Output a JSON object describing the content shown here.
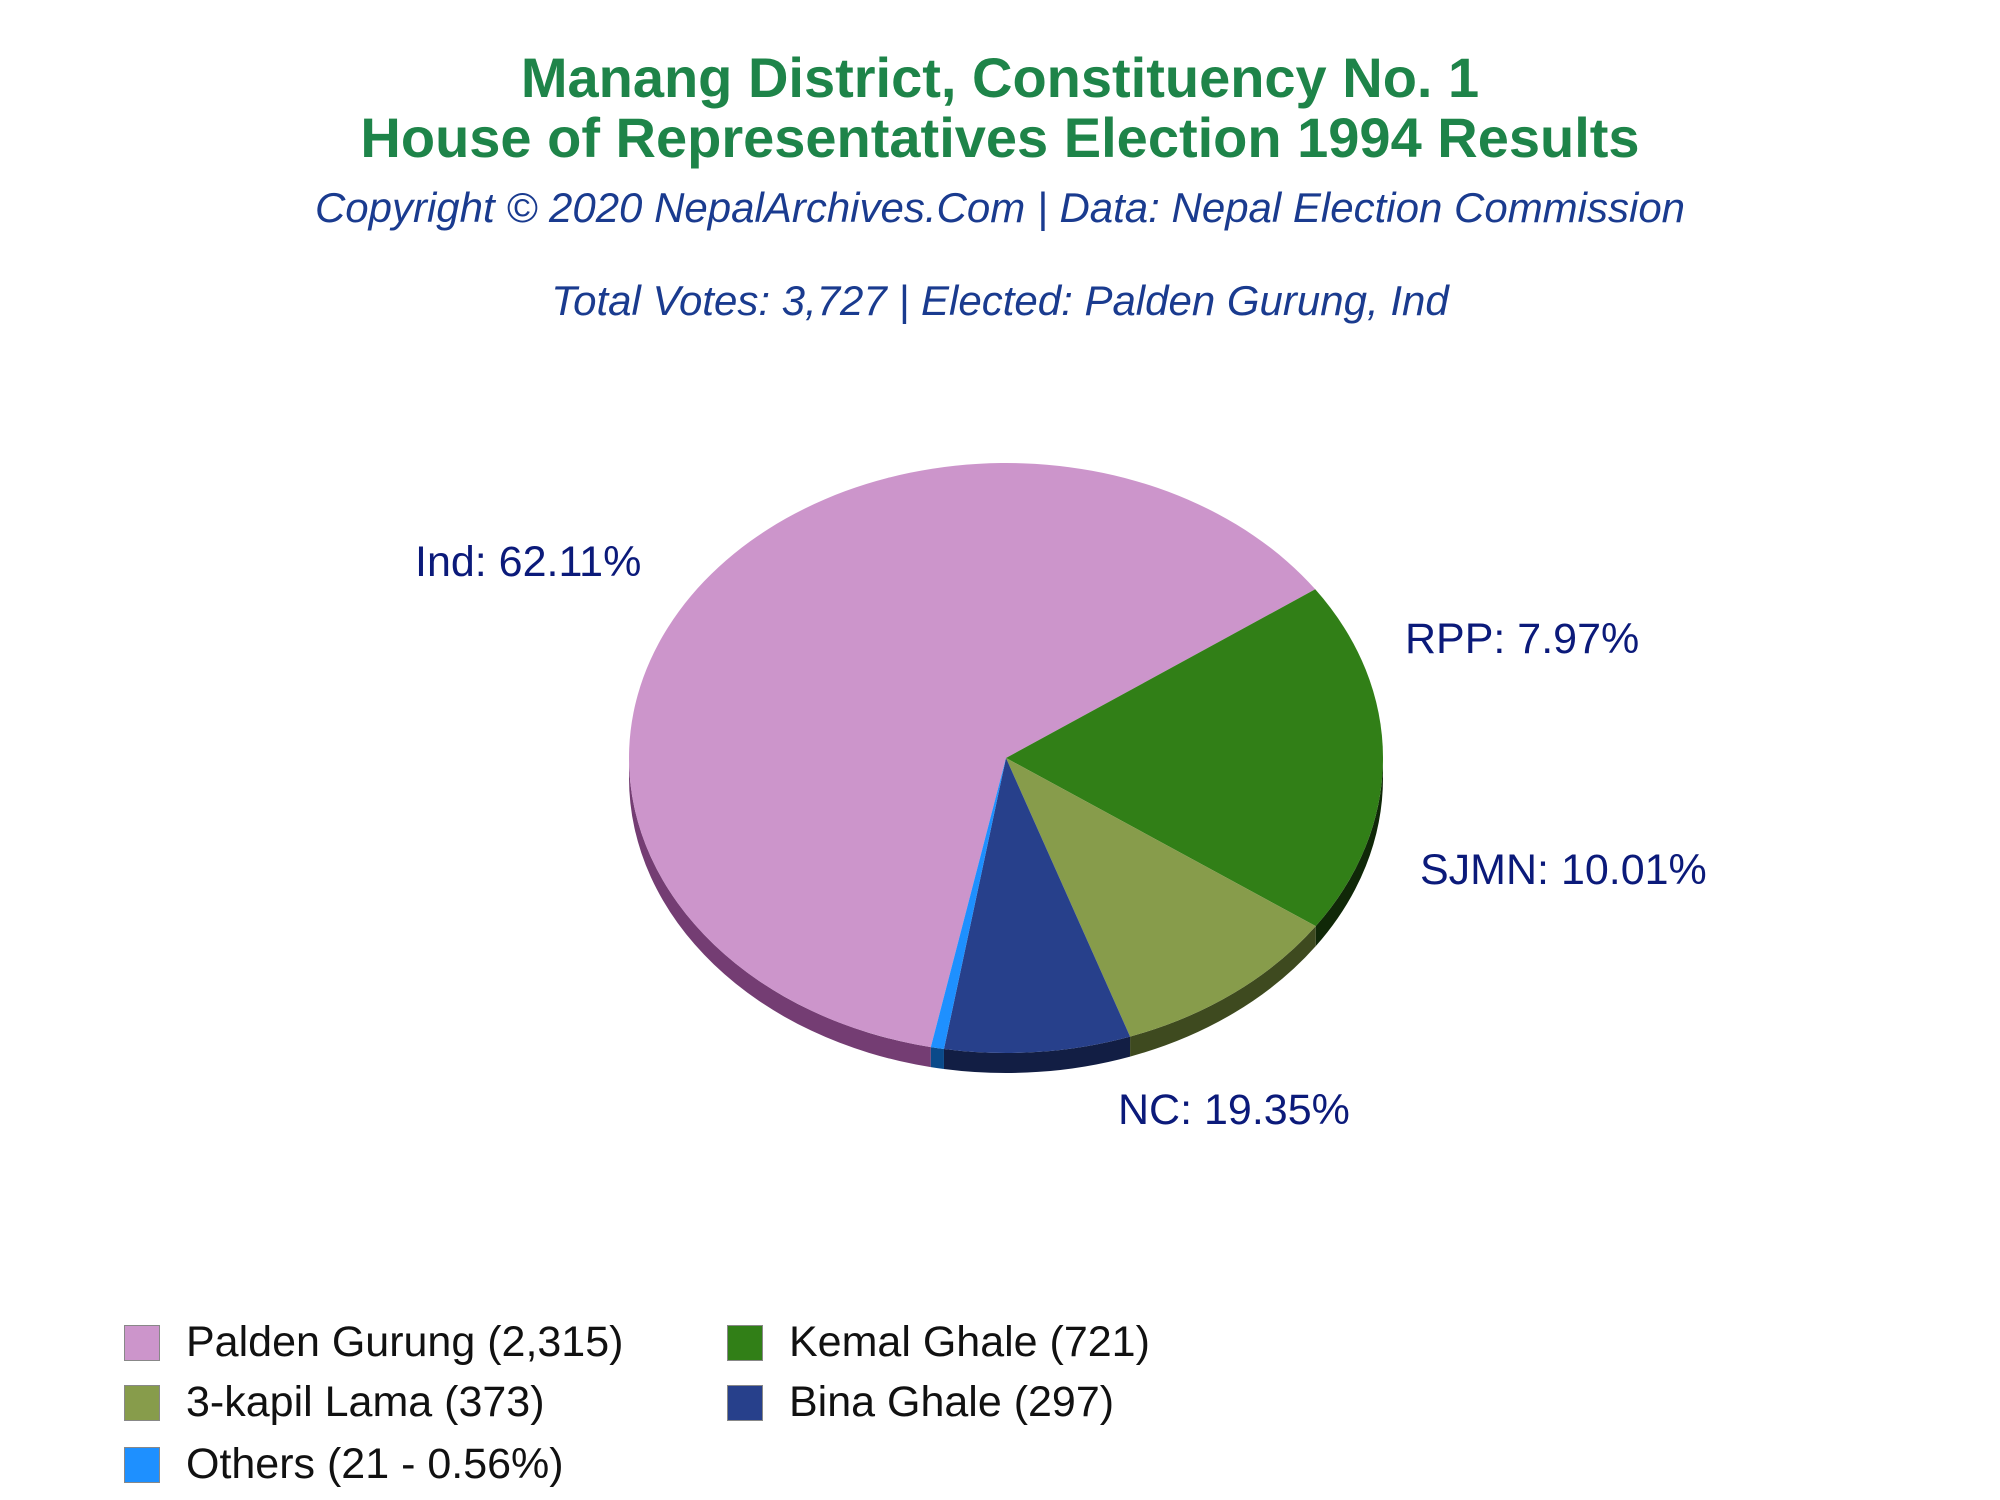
{
  "header": {
    "title_line1": "Manang District, Constituency No. 1",
    "title_line2": "House of Representatives Election 1994 Results",
    "copyright": "Copyright © 2020 NepalArchives.Com | Data: Nepal Election Commission",
    "summary": "Total Votes: 3,727 | Elected: Palden Gurung, Ind"
  },
  "chart_data": {
    "type": "pie",
    "title": "Manang District, Constituency No. 1\nHouse of Representatives Election 1994 Results",
    "total_votes": 3727,
    "slices": [
      {
        "party": "Ind",
        "slice_label": "Ind: 62.11%",
        "candidate": "Palden Gurung",
        "votes": 2315,
        "percent": 62.11,
        "legend": "Palden Gurung (2,315)",
        "color": "#cc95cb",
        "shade": "#743d73"
      },
      {
        "party": "NC",
        "slice_label": "NC: 19.35%",
        "candidate": "Kemal Ghale",
        "votes": 721,
        "percent": 19.35,
        "legend": "Kemal Ghale (721)",
        "color": "#317f17",
        "shade": "#102808"
      },
      {
        "party": "SJMN",
        "slice_label": "SJMN: 10.01%",
        "candidate": "3-kapil Lama",
        "votes": 373,
        "percent": 10.01,
        "legend": "3-kapil Lama (373)",
        "color": "#879c4b",
        "shade": "#3e4a1f"
      },
      {
        "party": "RPP",
        "slice_label": "RPP: 7.97%",
        "candidate": "Bina Ghale",
        "votes": 297,
        "percent": 7.97,
        "legend": "Bina Ghale (297)",
        "color": "#27408b",
        "shade": "#121e44"
      },
      {
        "party": "Others",
        "slice_label": "",
        "candidate": "Others",
        "votes": 21,
        "percent": 0.56,
        "legend": "Others (21 - 0.56%)",
        "color": "#1e90ff",
        "shade": "#0a4a8a"
      }
    ],
    "legend_position": "bottom-left"
  }
}
